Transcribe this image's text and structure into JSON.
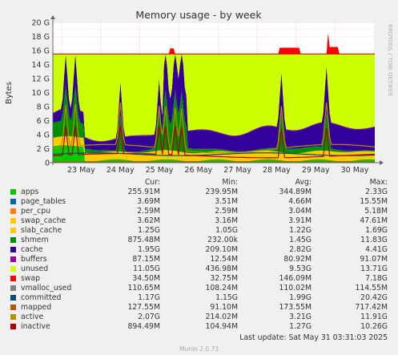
{
  "chart_data": {
    "type": "area",
    "title": "Memory usage - by week",
    "ylabel": "Bytes",
    "side_label": "RRDTOOL / TOBI OETIKER",
    "yticks": [
      "0",
      "2 G",
      "4 G",
      "6 G",
      "8 G",
      "10 G",
      "12 G",
      "14 G",
      "16 G",
      "18 G",
      "20 G"
    ],
    "ylim": [
      0,
      20
    ],
    "xticks": [
      "23 May",
      "24 May",
      "25 May",
      "26 May",
      "27 May",
      "28 May",
      "29 May",
      "30 May"
    ],
    "grid": true,
    "stacked": true,
    "series": [
      {
        "name": "apps",
        "color": "#00cc00",
        "cur": "255.91M",
        "min": "239.95M",
        "avg": "344.89M",
        "max": "2.33G"
      },
      {
        "name": "page_tables",
        "color": "#0066b3",
        "cur": "3.69M",
        "min": "3.51M",
        "avg": "4.66M",
        "max": "15.55M"
      },
      {
        "name": "per_cpu",
        "color": "#ff8000",
        "cur": "2.59M",
        "min": "2.59M",
        "avg": "3.04M",
        "max": "5.18M"
      },
      {
        "name": "swap_cache",
        "color": "#ffcc00",
        "cur": "3.62M",
        "min": "3.16M",
        "avg": "3.91M",
        "max": "47.61M"
      },
      {
        "name": "slab_cache",
        "color": "#ffcc00",
        "cur": "1.25G",
        "min": "1.05G",
        "avg": "1.22G",
        "max": "1.69G"
      },
      {
        "name": "shmem",
        "color": "#008f00",
        "cur": "875.48M",
        "min": "232.00k",
        "avg": "1.45G",
        "max": "11.83G"
      },
      {
        "name": "cache",
        "color": "#330099",
        "cur": "1.95G",
        "min": "209.10M",
        "avg": "2.82G",
        "max": "4.41G"
      },
      {
        "name": "buffers",
        "color": "#990099",
        "cur": "87.15M",
        "min": "12.54M",
        "avg": "80.92M",
        "max": "91.07M"
      },
      {
        "name": "unused",
        "color": "#ccff00",
        "cur": "11.05G",
        "min": "436.98M",
        "avg": "9.53G",
        "max": "13.71G"
      },
      {
        "name": "swap",
        "color": "#ff0000",
        "cur": "34.50M",
        "min": "32.75M",
        "avg": "146.09M",
        "max": "7.18G"
      },
      {
        "name": "vmalloc_used",
        "color": "#808080",
        "cur": "110.65M",
        "min": "108.24M",
        "avg": "110.02M",
        "max": "114.55M"
      },
      {
        "name": "committed",
        "color": "#004d75",
        "cur": "1.17G",
        "min": "1.15G",
        "avg": "1.99G",
        "max": "20.42G"
      },
      {
        "name": "mapped",
        "color": "#b35a00",
        "cur": "127.55M",
        "min": "91.10M",
        "avg": "173.55M",
        "max": "717.42M"
      },
      {
        "name": "active",
        "color": "#b38f00",
        "cur": "2.07G",
        "min": "214.02M",
        "avg": "3.21G",
        "max": "11.91G"
      },
      {
        "name": "inactive",
        "color": "#b30000",
        "cur": "894.49M",
        "min": "104.94M",
        "avg": "1.27G",
        "max": "10.26G"
      }
    ],
    "columns": {
      "cur": "Cur:",
      "min": "Min:",
      "avg": "Avg:",
      "max": "Max:"
    },
    "total_ram_gb": 15.5
  },
  "footer": "Last update:  Sat May 31 03:31:03 2025",
  "munin": "Munin 2.0.73"
}
